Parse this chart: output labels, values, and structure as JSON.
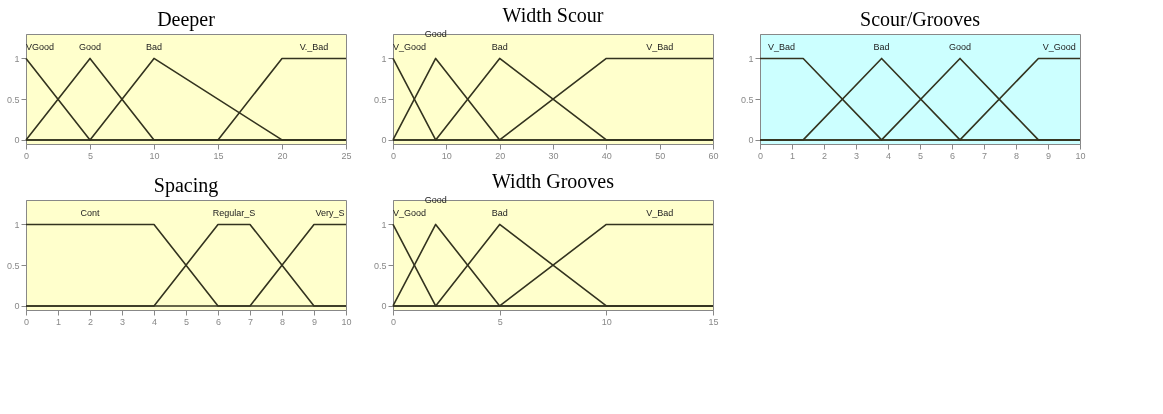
{
  "chart_data": [
    {
      "type": "line",
      "title": "Deeper",
      "xlim": [
        0,
        25
      ],
      "xticks": [
        0,
        5,
        10,
        15,
        20,
        25
      ],
      "ylim": [
        -0.05,
        1.3
      ],
      "yticks": [
        0,
        0.5,
        1
      ],
      "series": [
        {
          "name": "VGood",
          "color": "#33331f",
          "x": [
            0,
            5,
            25
          ],
          "values": [
            1,
            0,
            0
          ]
        },
        {
          "name": "Good",
          "color": "#33331f",
          "x": [
            0,
            5,
            10,
            25
          ],
          "values": [
            0,
            1,
            0,
            0
          ]
        },
        {
          "name": "Bad",
          "color": "#33331f",
          "x": [
            0,
            5,
            10,
            20,
            25
          ],
          "values": [
            0,
            0,
            1,
            0,
            0
          ]
        },
        {
          "name": "V._Bad",
          "color": "#33331f",
          "x": [
            0,
            15,
            20,
            25
          ],
          "values": [
            0,
            0,
            1,
            1
          ]
        }
      ]
    },
    {
      "type": "line",
      "title": "Width Scour",
      "xlim": [
        0,
        60
      ],
      "xticks": [
        0,
        10,
        20,
        30,
        40,
        50,
        60
      ],
      "ylim": [
        -0.05,
        1.3
      ],
      "yticks": [
        0,
        0.5,
        1
      ],
      "series": [
        {
          "name": "V_Good",
          "color": "#33331f",
          "x": [
            0,
            8,
            60
          ],
          "values": [
            1,
            0,
            0
          ]
        },
        {
          "name": "Good",
          "color": "#33331f",
          "x": [
            0,
            8,
            20,
            60
          ],
          "values": [
            0,
            1,
            0,
            0
          ]
        },
        {
          "name": "Bad",
          "color": "#33331f",
          "x": [
            0,
            8,
            20,
            40,
            60
          ],
          "values": [
            0,
            0,
            1,
            0,
            0
          ]
        },
        {
          "name": "V_Bad",
          "color": "#33331f",
          "x": [
            0,
            20,
            40,
            60
          ],
          "values": [
            0,
            0,
            1,
            1
          ]
        }
      ]
    },
    {
      "type": "line",
      "title": "Scour/Grooves",
      "xlim": [
        0,
        10
      ],
      "xticks": [
        0,
        1,
        2,
        3,
        4,
        5,
        6,
        7,
        8,
        9,
        10
      ],
      "ylim": [
        -0.05,
        1.3
      ],
      "yticks": [
        0,
        0.5,
        1
      ],
      "series": [
        {
          "name": "V_Bad",
          "color": "#33331f",
          "x": [
            0,
            1.35,
            3.8,
            10
          ],
          "values": [
            1,
            1,
            0,
            0
          ]
        },
        {
          "name": "Bad",
          "color": "#33331f",
          "x": [
            0,
            1.35,
            3.8,
            6.25,
            10
          ],
          "values": [
            0,
            0,
            1,
            0,
            0
          ]
        },
        {
          "name": "Good",
          "color": "#33331f",
          "x": [
            0,
            3.8,
            6.25,
            8.7,
            10
          ],
          "values": [
            0,
            0,
            1,
            0,
            0
          ]
        },
        {
          "name": "V_Good",
          "color": "#33331f",
          "x": [
            0,
            6.25,
            8.7,
            10
          ],
          "values": [
            0,
            0,
            1,
            1
          ]
        }
      ]
    },
    {
      "type": "line",
      "title": "Spacing",
      "xlim": [
        0,
        10
      ],
      "xticks": [
        0,
        1,
        2,
        3,
        4,
        5,
        6,
        7,
        8,
        9,
        10
      ],
      "ylim": [
        -0.05,
        1.3
      ],
      "yticks": [
        0,
        0.5,
        1
      ],
      "series": [
        {
          "name": "Cont",
          "color": "#33331f",
          "x": [
            0,
            4,
            6,
            10
          ],
          "values": [
            1,
            1,
            0,
            0
          ]
        },
        {
          "name": "Regular_S",
          "color": "#33331f",
          "x": [
            0,
            4,
            6,
            7,
            9,
            10
          ],
          "values": [
            0,
            0,
            1,
            1,
            0,
            0
          ]
        },
        {
          "name": "Very_S",
          "color": "#33331f",
          "x": [
            0,
            7,
            9,
            10
          ],
          "values": [
            0,
            0,
            1,
            1
          ]
        }
      ]
    },
    {
      "type": "line",
      "title": "Width Grooves",
      "xlim": [
        0,
        15
      ],
      "xticks": [
        0,
        5,
        10,
        15
      ],
      "ylim": [
        -0.05,
        1.3
      ],
      "yticks": [
        0,
        0.5,
        1
      ],
      "series": [
        {
          "name": "V_Good",
          "color": "#33331f",
          "x": [
            0,
            2,
            15
          ],
          "values": [
            1,
            0,
            0
          ]
        },
        {
          "name": "Good",
          "color": "#33331f",
          "x": [
            0,
            2,
            5,
            15
          ],
          "values": [
            0,
            1,
            0,
            0
          ]
        },
        {
          "name": "Bad",
          "color": "#33331f",
          "x": [
            0,
            2,
            5,
            10,
            15
          ],
          "values": [
            0,
            0,
            1,
            0,
            0
          ]
        },
        {
          "name": "V_Bad",
          "color": "#33331f",
          "x": [
            0,
            5,
            10,
            15
          ],
          "values": [
            0,
            0,
            1,
            1
          ]
        }
      ]
    }
  ]
}
